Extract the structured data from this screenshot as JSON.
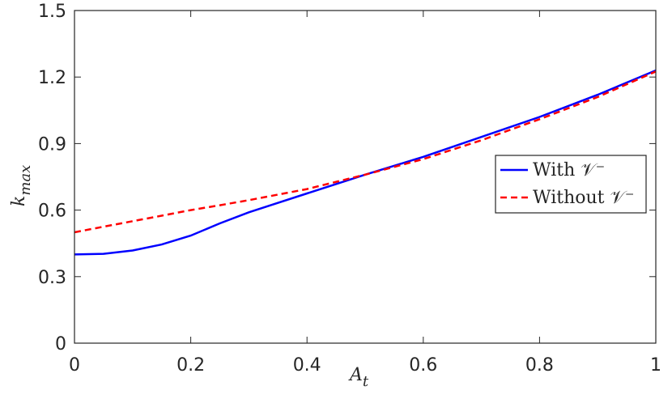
{
  "chart_data": {
    "type": "line",
    "xlabel": {
      "main": "A",
      "sub": "t"
    },
    "ylabel": {
      "main": "k",
      "sub": "max"
    },
    "x": [
      0,
      0.05,
      0.1,
      0.15,
      0.2,
      0.25,
      0.3,
      0.4,
      0.5,
      0.6,
      0.7,
      0.8,
      0.9,
      1
    ],
    "series": [
      {
        "name": "With 𝒱⁻",
        "color": "#0000ff",
        "dash": false,
        "values": [
          0.4,
          0.403,
          0.418,
          0.445,
          0.485,
          0.54,
          0.59,
          0.675,
          0.76,
          0.84,
          0.93,
          1.02,
          1.12,
          1.23
        ]
      },
      {
        "name": "Without 𝒱⁻",
        "color": "#ff0000",
        "dash": true,
        "values": [
          0.5,
          0.525,
          0.55,
          0.575,
          0.6,
          0.622,
          0.645,
          0.695,
          0.76,
          0.83,
          0.915,
          1.01,
          1.11,
          1.225
        ]
      }
    ],
    "xlim": [
      0,
      1
    ],
    "xticks": [
      0,
      0.2,
      0.4,
      0.6,
      0.8,
      1
    ],
    "ylim": [
      0,
      1.5
    ],
    "yticks": [
      0,
      0.3,
      0.6,
      0.9,
      1.2,
      1.5
    ],
    "grid": false,
    "legend": "right"
  }
}
